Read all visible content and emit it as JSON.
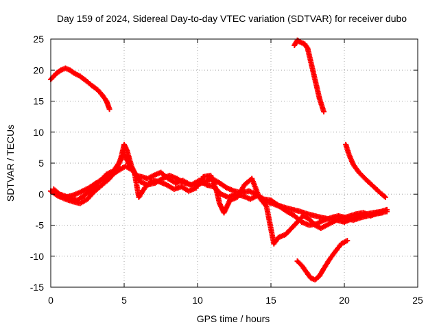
{
  "chart_data": {
    "type": "scatter",
    "title": "Day 159 of 2024, Sidereal Day-to-day VTEC variation (SDTVAR) for receiver dubo",
    "xlabel": "GPS time / hours",
    "ylabel": "SDTVAR / TECUs",
    "xlim": [
      0,
      25
    ],
    "ylim": [
      -15,
      25
    ],
    "xticks": [
      "0",
      "5",
      "10",
      "15",
      "20",
      "25"
    ],
    "yticks": [
      "25",
      "20",
      "15",
      "10",
      "5",
      "0",
      "-5",
      "-10",
      "-15"
    ],
    "grid": true,
    "marker": "plus",
    "color": "#ff0000",
    "series": [
      {
        "name": "arc-1",
        "points": [
          [
            0.0,
            18.5
          ],
          [
            0.2,
            19.0
          ],
          [
            0.4,
            19.5
          ],
          [
            0.7,
            20.0
          ],
          [
            1.0,
            20.3
          ],
          [
            1.3,
            20.0
          ],
          [
            1.6,
            19.5
          ],
          [
            2.0,
            19.0
          ],
          [
            2.4,
            18.3
          ],
          [
            2.8,
            17.5
          ],
          [
            3.2,
            16.8
          ],
          [
            3.5,
            16.0
          ],
          [
            3.8,
            15.0
          ],
          [
            4.0,
            13.7
          ]
        ]
      },
      {
        "name": "arc-2",
        "points": [
          [
            16.6,
            24.0
          ],
          [
            16.8,
            24.8
          ],
          [
            17.0,
            24.5
          ],
          [
            17.3,
            24.2
          ],
          [
            17.5,
            23.5
          ],
          [
            17.7,
            21.5
          ],
          [
            17.9,
            19.5
          ],
          [
            18.1,
            17.5
          ],
          [
            18.3,
            15.5
          ],
          [
            18.5,
            14.0
          ],
          [
            18.6,
            13.3
          ]
        ]
      },
      {
        "name": "arc-3",
        "points": [
          [
            20.1,
            8.0
          ],
          [
            20.3,
            6.5
          ],
          [
            20.6,
            4.8
          ],
          [
            21.0,
            3.5
          ],
          [
            21.5,
            2.3
          ],
          [
            22.0,
            1.2
          ],
          [
            22.4,
            0.3
          ],
          [
            22.8,
            -0.5
          ]
        ]
      },
      {
        "name": "arc-4",
        "points": [
          [
            16.8,
            -10.8
          ],
          [
            17.1,
            -11.5
          ],
          [
            17.4,
            -12.5
          ],
          [
            17.7,
            -13.5
          ],
          [
            18.0,
            -13.8
          ],
          [
            18.3,
            -13.2
          ],
          [
            18.6,
            -12.0
          ],
          [
            19.0,
            -10.5
          ],
          [
            19.4,
            -9.2
          ],
          [
            19.8,
            -8.0
          ],
          [
            20.2,
            -7.5
          ]
        ]
      },
      {
        "name": "arc-5",
        "points": [
          [
            0.0,
            0.5
          ],
          [
            0.5,
            -0.3
          ],
          [
            1.0,
            -0.8
          ],
          [
            1.5,
            -1.2
          ],
          [
            2.0,
            -1.5
          ],
          [
            2.5,
            -0.8
          ],
          [
            3.0,
            0.5
          ],
          [
            3.5,
            1.5
          ],
          [
            4.0,
            2.5
          ],
          [
            4.5,
            4.0
          ],
          [
            4.8,
            6.0
          ],
          [
            5.0,
            8.0
          ],
          [
            5.2,
            7.0
          ],
          [
            5.5,
            4.5
          ],
          [
            5.8,
            3.0
          ],
          [
            6.2,
            2.8
          ],
          [
            6.6,
            2.5
          ],
          [
            7.0,
            3.0
          ],
          [
            7.5,
            3.5
          ],
          [
            8.0,
            2.5
          ],
          [
            8.5,
            1.8
          ],
          [
            9.0,
            2.2
          ],
          [
            9.5,
            1.5
          ],
          [
            10.0,
            1.5
          ],
          [
            10.5,
            2.0
          ],
          [
            11.0,
            2.5
          ],
          [
            11.5,
            1.8
          ],
          [
            12.0,
            1.0
          ],
          [
            12.5,
            0.5
          ],
          [
            13.0,
            0.2
          ],
          [
            13.5,
            0.5
          ],
          [
            14.0,
            0.0
          ],
          [
            14.5,
            -0.8
          ],
          [
            15.0,
            -1.0
          ],
          [
            15.5,
            -1.8
          ],
          [
            16.0,
            -2.2
          ],
          [
            16.5,
            -2.5
          ],
          [
            17.0,
            -2.8
          ],
          [
            17.5,
            -3.2
          ],
          [
            18.0,
            -3.5
          ],
          [
            18.5,
            -3.8
          ],
          [
            19.0,
            -4.0
          ],
          [
            19.5,
            -4.2
          ],
          [
            20.0,
            -4.5
          ],
          [
            20.5,
            -4.0
          ],
          [
            21.0,
            -3.5
          ],
          [
            21.5,
            -3.2
          ],
          [
            22.0,
            -3.0
          ],
          [
            22.5,
            -2.8
          ],
          [
            22.9,
            -2.5
          ]
        ]
      },
      {
        "name": "arc-6",
        "points": [
          [
            0.2,
            0.8
          ],
          [
            0.6,
            0.0
          ],
          [
            1.2,
            -0.5
          ],
          [
            1.8,
            -1.0
          ],
          [
            2.3,
            -0.2
          ],
          [
            2.8,
            0.8
          ],
          [
            3.3,
            2.0
          ],
          [
            3.8,
            3.2
          ],
          [
            4.3,
            3.8
          ],
          [
            4.7,
            5.2
          ],
          [
            5.0,
            6.5
          ],
          [
            5.3,
            5.0
          ],
          [
            5.7,
            3.5
          ],
          [
            6.0,
            -0.5
          ],
          [
            6.4,
            1.0
          ],
          [
            6.9,
            2.2
          ],
          [
            7.4,
            2.0
          ],
          [
            7.9,
            1.5
          ],
          [
            8.4,
            0.8
          ],
          [
            8.9,
            1.2
          ],
          [
            9.4,
            0.5
          ],
          [
            9.9,
            1.0
          ],
          [
            10.4,
            2.8
          ],
          [
            10.9,
            3.0
          ],
          [
            11.3,
            0.5
          ],
          [
            11.5,
            -1.5
          ],
          [
            11.8,
            -3.0
          ],
          [
            12.2,
            -1.0
          ],
          [
            12.7,
            -0.5
          ],
          [
            13.2,
            1.5
          ],
          [
            13.7,
            2.5
          ],
          [
            14.2,
            -0.5
          ],
          [
            14.7,
            -2.0
          ],
          [
            15.2,
            -8.0
          ],
          [
            15.5,
            -7.0
          ],
          [
            16.0,
            -6.5
          ],
          [
            16.4,
            -5.5
          ],
          [
            16.8,
            -4.5
          ],
          [
            17.2,
            -3.5
          ],
          [
            17.6,
            -4.0
          ],
          [
            18.0,
            -5.0
          ],
          [
            18.4,
            -5.5
          ],
          [
            18.8,
            -5.0
          ],
          [
            19.2,
            -4.5
          ],
          [
            19.6,
            -4.0
          ],
          [
            20.0,
            -3.8
          ],
          [
            20.4,
            -3.5
          ],
          [
            20.8,
            -3.2
          ],
          [
            21.3,
            -3.0
          ],
          [
            21.8,
            -3.5
          ],
          [
            22.3,
            -3.0
          ],
          [
            22.9,
            -2.8
          ]
        ]
      },
      {
        "name": "arc-7",
        "points": [
          [
            1.0,
            -0.5
          ],
          [
            1.5,
            -0.2
          ],
          [
            2.0,
            0.3
          ],
          [
            2.6,
            1.0
          ],
          [
            3.1,
            1.8
          ],
          [
            3.6,
            2.5
          ],
          [
            4.1,
            3.0
          ],
          [
            4.6,
            3.8
          ],
          [
            5.1,
            4.5
          ],
          [
            5.6,
            3.8
          ],
          [
            6.1,
            2.0
          ],
          [
            6.6,
            1.5
          ],
          [
            7.1,
            1.8
          ],
          [
            7.6,
            2.5
          ],
          [
            8.1,
            3.0
          ],
          [
            8.6,
            2.5
          ],
          [
            9.1,
            1.8
          ],
          [
            9.6,
            1.5
          ],
          [
            10.1,
            2.2
          ],
          [
            10.6,
            1.5
          ],
          [
            11.1,
            1.2
          ],
          [
            11.6,
            0.0
          ],
          [
            12.1,
            -0.5
          ],
          [
            12.6,
            0.0
          ],
          [
            13.1,
            -0.3
          ],
          [
            13.6,
            -0.8
          ],
          [
            14.1,
            -0.2
          ],
          [
            14.6,
            -1.2
          ],
          [
            15.1,
            -1.5
          ],
          [
            15.6,
            -2.0
          ],
          [
            16.1,
            -2.8
          ],
          [
            16.6,
            -3.5
          ],
          [
            17.1,
            -4.5
          ],
          [
            17.6,
            -5.0
          ],
          [
            18.1,
            -4.8
          ],
          [
            18.6,
            -4.2
          ],
          [
            19.1,
            -3.8
          ],
          [
            19.6,
            -3.5
          ],
          [
            20.1,
            -3.8
          ],
          [
            20.6,
            -4.2
          ],
          [
            21.1,
            -3.8
          ],
          [
            21.6,
            -3.5
          ],
          [
            22.1,
            -3.2
          ],
          [
            22.6,
            -3.0
          ]
        ]
      }
    ]
  }
}
